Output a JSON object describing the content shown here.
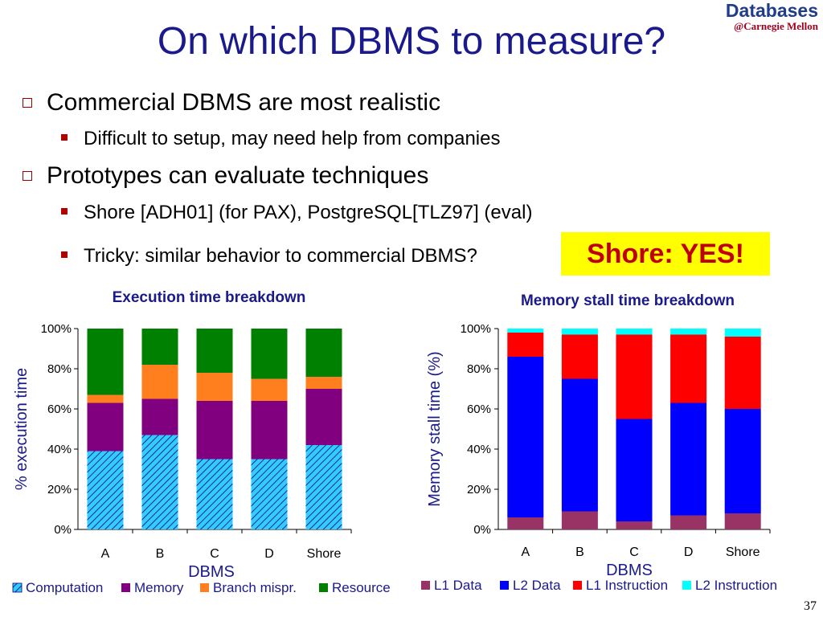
{
  "brand": {
    "name": "Databases",
    "sub": "@Carnegie Mellon"
  },
  "title": "On which DBMS to measure?",
  "bullets": [
    {
      "text": "Commercial DBMS are most realistic",
      "subs": [
        "Difficult to setup, may need help from companies"
      ]
    },
    {
      "text": "Prototypes can evaluate techniques",
      "subs": [
        "Shore [ADH01] (for PAX), PostgreSQL[TLZ97] (eval)",
        "Tricky: similar behavior to commercial DBMS?"
      ]
    }
  ],
  "callout": "Shore: YES!",
  "page_number": "37",
  "colors": {
    "title": "#1a1a8c",
    "computation": "#33ccff",
    "memory": "#800080",
    "branch": "#ff7f1e",
    "resource": "#008000",
    "l1_data": "#993366",
    "l2_data": "#0000ff",
    "l1_instruction": "#ff0000",
    "l2_instruction": "#00ffff"
  },
  "chart_data": [
    {
      "type": "bar",
      "stacked": true,
      "title": "Execution time breakdown",
      "xlabel": "DBMS",
      "ylabel": "% execution time",
      "ylim": [
        0,
        100
      ],
      "yticks": [
        "0%",
        "20%",
        "40%",
        "60%",
        "80%",
        "100%"
      ],
      "categories": [
        "A",
        "B",
        "C",
        "D",
        "Shore"
      ],
      "series": [
        {
          "name": "Computation",
          "values": [
            39,
            47,
            35,
            35,
            42
          ]
        },
        {
          "name": "Memory",
          "values": [
            24,
            18,
            29,
            29,
            28
          ]
        },
        {
          "name": "Branch mispr.",
          "values": [
            4,
            17,
            14,
            11,
            6
          ]
        },
        {
          "name": "Resource",
          "values": [
            33,
            18,
            22,
            25,
            24
          ]
        }
      ],
      "legend": "bottom"
    },
    {
      "type": "bar",
      "stacked": true,
      "title": "Memory stall time breakdown",
      "xlabel": "DBMS",
      "ylabel": "Memory stall time (%)",
      "ylim": [
        0,
        100
      ],
      "yticks": [
        "0%",
        "20%",
        "40%",
        "60%",
        "80%",
        "100%"
      ],
      "categories": [
        "A",
        "B",
        "C",
        "D",
        "Shore"
      ],
      "series": [
        {
          "name": "L1  Data",
          "values": [
            6,
            9,
            4,
            7,
            8
          ]
        },
        {
          "name": "L2 Data",
          "values": [
            80,
            66,
            51,
            56,
            52
          ]
        },
        {
          "name": "L1 Instruction",
          "values": [
            12,
            22,
            42,
            34,
            36
          ]
        },
        {
          "name": "L2 Instruction",
          "values": [
            2,
            3,
            3,
            3,
            4
          ]
        }
      ],
      "legend": "bottom"
    }
  ]
}
